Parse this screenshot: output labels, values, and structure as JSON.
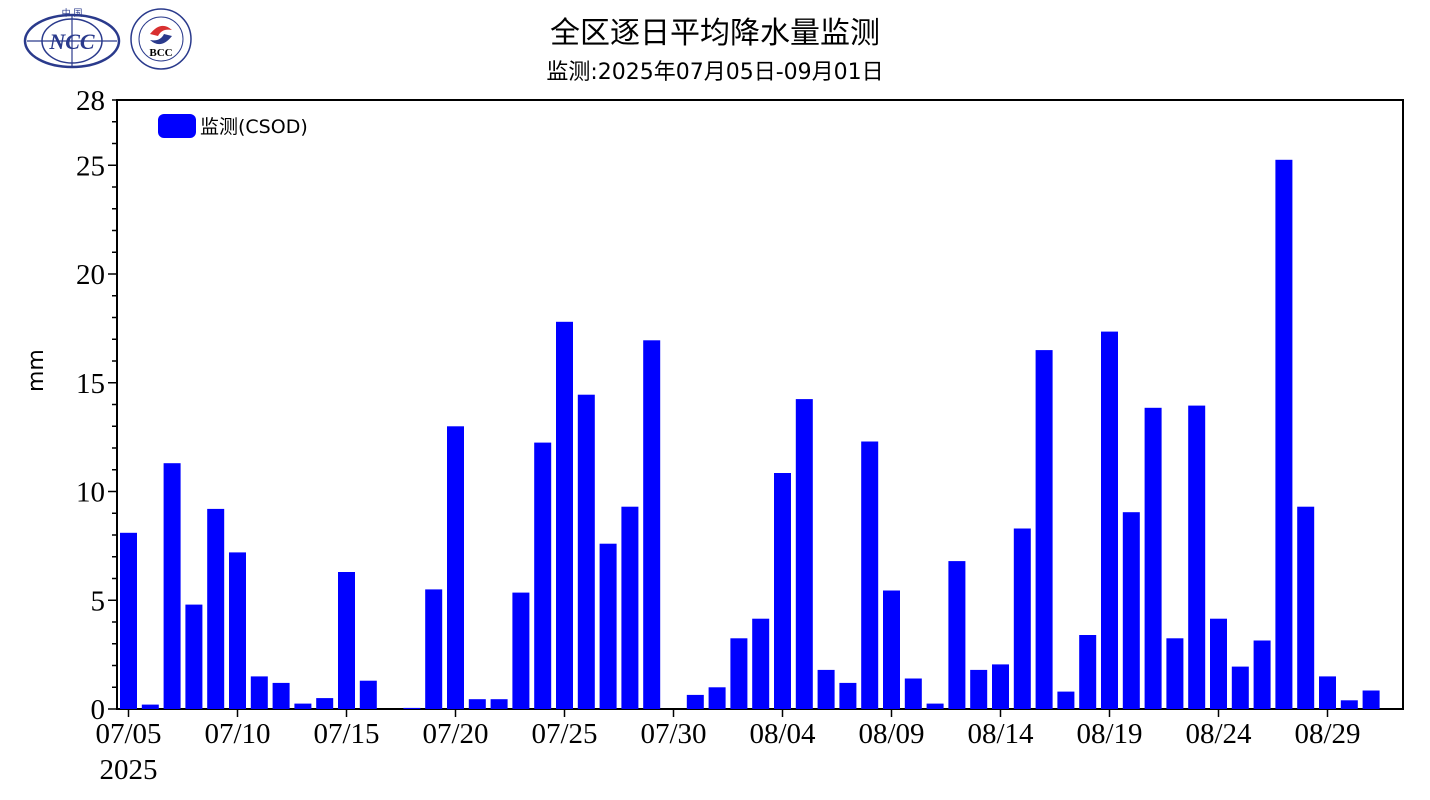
{
  "logos": {
    "ncc_text": "NCC",
    "ncc_top": "中 国",
    "bcc_text": "BCC"
  },
  "chart_data": {
    "type": "bar",
    "title": "全区逐日平均降水量监测",
    "subtitle": "监测:2025年07月05日-09月01日",
    "ylabel": "mm",
    "ylim": [
      0,
      28
    ],
    "yticks": [
      0,
      5,
      10,
      15,
      20,
      25,
      28
    ],
    "xtick_labels": [
      "07/05",
      "07/10",
      "07/15",
      "07/20",
      "07/25",
      "07/30",
      "08/04",
      "08/09",
      "08/14",
      "08/19",
      "08/24",
      "08/29"
    ],
    "year_label": "2025",
    "legend": {
      "label": "监测(CSOD)",
      "placement": "top-left"
    },
    "bar_color": "#0000ff",
    "categories": [
      "07/05",
      "07/06",
      "07/07",
      "07/08",
      "07/09",
      "07/10",
      "07/11",
      "07/12",
      "07/13",
      "07/14",
      "07/15",
      "07/16",
      "07/17",
      "07/18",
      "07/19",
      "07/20",
      "07/21",
      "07/22",
      "07/23",
      "07/24",
      "07/25",
      "07/26",
      "07/27",
      "07/28",
      "07/29",
      "07/30",
      "07/31",
      "08/01",
      "08/02",
      "08/03",
      "08/04",
      "08/05",
      "08/06",
      "08/07",
      "08/08",
      "08/09",
      "08/10",
      "08/11",
      "08/12",
      "08/13",
      "08/14",
      "08/15",
      "08/16",
      "08/17",
      "08/18",
      "08/19",
      "08/20",
      "08/21",
      "08/22",
      "08/23",
      "08/24",
      "08/25",
      "08/26",
      "08/27",
      "08/28",
      "08/29",
      "08/30",
      "08/31",
      "09/01"
    ],
    "values": [
      8.1,
      0.2,
      11.3,
      4.8,
      9.2,
      7.2,
      1.5,
      1.2,
      0.25,
      0.5,
      6.3,
      1.3,
      0.0,
      0.05,
      5.5,
      13.0,
      0.45,
      0.45,
      5.35,
      12.25,
      17.8,
      14.45,
      7.6,
      9.3,
      16.95,
      0.0,
      0.65,
      1.0,
      3.25,
      4.15,
      10.85,
      14.25,
      1.8,
      1.2,
      12.3,
      5.45,
      1.4,
      0.25,
      6.8,
      1.8,
      2.05,
      8.3,
      16.5,
      0.8,
      3.4,
      17.35,
      9.05,
      13.85,
      3.25,
      13.95,
      4.15,
      1.95,
      3.15,
      25.25,
      9.3,
      1.5,
      0.4,
      0.85,
      null
    ]
  }
}
